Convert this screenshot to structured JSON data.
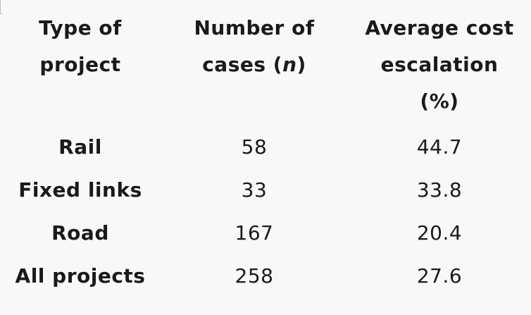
{
  "table": {
    "headers": [
      {
        "lines": [
          "Type of",
          "project"
        ]
      },
      {
        "lines": [
          "Number of",
          "cases (",
          "n",
          ")"
        ]
      },
      {
        "lines": [
          "Average cost",
          "escalation",
          "(%)"
        ]
      }
    ],
    "rows": [
      {
        "type": "Rail",
        "cases": "58",
        "escalation": "44.7"
      },
      {
        "type": "Fixed links",
        "cases": "33",
        "escalation": "33.8"
      },
      {
        "type": "Road",
        "cases": "167",
        "escalation": "20.4"
      },
      {
        "type": "All projects",
        "cases": "258",
        "escalation": "27.6"
      }
    ]
  }
}
